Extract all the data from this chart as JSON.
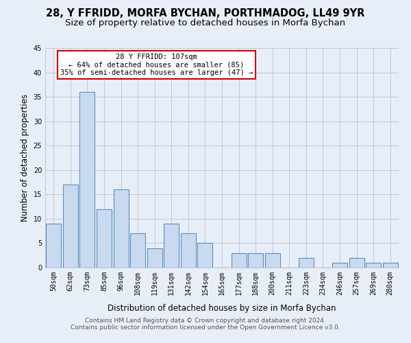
{
  "title": "28, Y FFRIDD, MORFA BYCHAN, PORTHMADOG, LL49 9YR",
  "subtitle": "Size of property relative to detached houses in Morfa Bychan",
  "xlabel": "Distribution of detached houses by size in Morfa Bychan",
  "ylabel": "Number of detached properties",
  "categories": [
    "50sqm",
    "62sqm",
    "73sqm",
    "85sqm",
    "96sqm",
    "108sqm",
    "119sqm",
    "131sqm",
    "142sqm",
    "154sqm",
    "165sqm",
    "177sqm",
    "188sqm",
    "200sqm",
    "211sqm",
    "223sqm",
    "234sqm",
    "246sqm",
    "257sqm",
    "269sqm",
    "280sqm"
  ],
  "values": [
    9,
    17,
    36,
    12,
    16,
    7,
    4,
    9,
    7,
    5,
    0,
    3,
    3,
    3,
    0,
    2,
    0,
    1,
    2,
    1,
    1
  ],
  "bar_color": "#c9d9f0",
  "bar_edge_color": "#5a8fc2",
  "annotation_text": "28 Y FFRIDD: 107sqm\n← 64% of detached houses are smaller (85)\n35% of semi-detached houses are larger (47) →",
  "annotation_box_color": "#ffffff",
  "annotation_box_edge_color": "#cc0000",
  "ylim": [
    0,
    45
  ],
  "yticks": [
    0,
    5,
    10,
    15,
    20,
    25,
    30,
    35,
    40,
    45
  ],
  "bg_color": "#e8eef8",
  "plot_bg_color": "#e8eef8",
  "grid_color": "#c0c8d8",
  "footer_line1": "Contains HM Land Registry data © Crown copyright and database right 2024.",
  "footer_line2": "Contains public sector information licensed under the Open Government Licence v3.0.",
  "title_fontsize": 10.5,
  "subtitle_fontsize": 9.5,
  "tick_fontsize": 7,
  "ylabel_fontsize": 8.5,
  "xlabel_fontsize": 8.5,
  "annotation_fontsize": 7.5,
  "footer_fontsize": 6.5
}
